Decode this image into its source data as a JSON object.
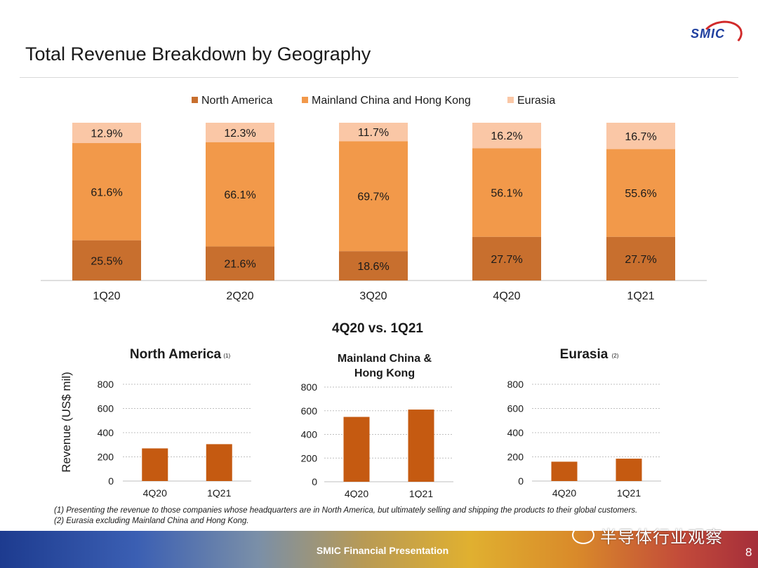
{
  "title": "Total Revenue Breakdown by Geography",
  "logo": "SMIC",
  "chart_data": [
    {
      "type": "bar",
      "stacked": true,
      "categories": [
        "1Q20",
        "2Q20",
        "3Q20",
        "4Q20",
        "1Q21"
      ],
      "series": [
        {
          "name": "North America",
          "values": [
            25.5,
            21.6,
            18.6,
            27.7,
            27.7
          ],
          "labels": [
            "25.5%",
            "21.6%",
            "18.6%",
            "27.7%",
            "27.7%"
          ],
          "color": "#c86f2e"
        },
        {
          "name": "Mainland China and Hong Kong",
          "values": [
            61.6,
            66.1,
            69.7,
            56.1,
            55.6
          ],
          "labels": [
            "61.6%",
            "66.1%",
            "69.7%",
            "56.1%",
            "55.6%"
          ],
          "color": "#f2994a"
        },
        {
          "name": "Eurasia",
          "values": [
            12.9,
            12.3,
            11.7,
            16.2,
            16.7
          ],
          "labels": [
            "12.9%",
            "12.3%",
            "11.7%",
            "16.2%",
            "16.7%"
          ],
          "color": "#fac7a6"
        }
      ],
      "legend": "top",
      "ylim": [
        0,
        100
      ]
    },
    {
      "type": "bar",
      "title": "North America",
      "title_note": "(1)",
      "categories": [
        "4Q20",
        "1Q21"
      ],
      "values": [
        270,
        305
      ],
      "ylabel": "Revenue (US$  mil)",
      "ylim": [
        0,
        800
      ],
      "yticks": [
        "0",
        "200",
        "400",
        "600",
        "800"
      ],
      "color": "#c55a11",
      "grid": true
    },
    {
      "type": "bar",
      "title": "Mainland China & Hong Kong",
      "title_lines": [
        "Mainland China &",
        "Hong Kong"
      ],
      "categories": [
        "4Q20",
        "1Q21"
      ],
      "values": [
        548,
        610
      ],
      "ylim": [
        0,
        800
      ],
      "yticks": [
        "0",
        "200",
        "400",
        "600",
        "800"
      ],
      "color": "#c55a11",
      "grid": true
    },
    {
      "type": "bar",
      "title": "Eurasia",
      "title_note": "(2)",
      "categories": [
        "4Q20",
        "1Q21"
      ],
      "values": [
        160,
        185
      ],
      "ylim": [
        0,
        800
      ],
      "yticks": [
        "0",
        "200",
        "400",
        "600",
        "800"
      ],
      "color": "#c55a11",
      "grid": true
    }
  ],
  "comparison_title": "4Q20 vs. 1Q21",
  "notes": [
    "(1) Presenting the revenue to those companies whose headquarters are in North America, but ultimately selling and shipping the products to their global customers.",
    "(2)  Eurasia excluding Mainland China and Hong Kong."
  ],
  "footer": "SMIC Financial Presentation",
  "page_number": "8",
  "watermark": "半导体行业观察"
}
